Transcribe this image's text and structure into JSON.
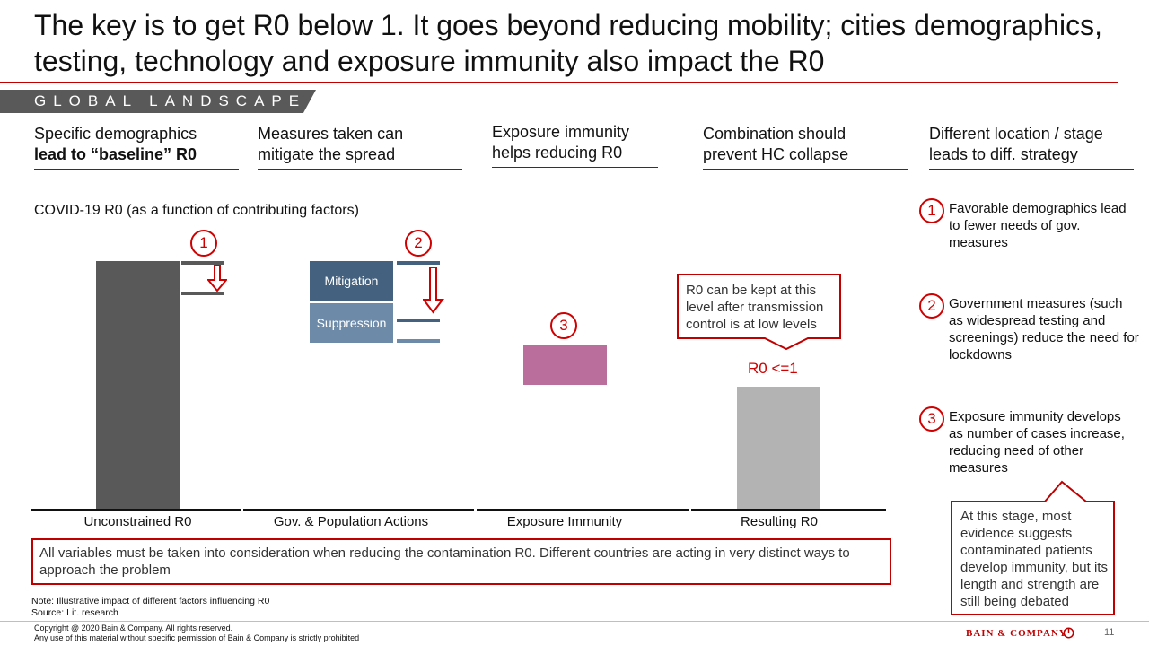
{
  "title": "The key is to get R0 below 1. It goes beyond reducing mobility; cities demographics, testing, technology and exposure immunity also impact the R0",
  "section_label": "GLOBAL LANDSCAPE",
  "columns": [
    {
      "line1": "Specific demographics",
      "line2": "lead to “baseline” R0"
    },
    {
      "line1": "Measures taken can",
      "line2": "mitigate the spread"
    },
    {
      "line1": "Exposure immunity",
      "line2": "helps reducing R0"
    },
    {
      "line1": "Combination should",
      "line2": "prevent HC collapse"
    },
    {
      "line1": "Different location / stage",
      "line2": "leads to  diff. strategy"
    }
  ],
  "chart_label": "COVID-19 R0 (as a function of contributing factors)",
  "markers": [
    "1",
    "2",
    "3"
  ],
  "chart_data": {
    "type": "bar",
    "categories": [
      "Unconstrained R0",
      "Gov. & Population Actions",
      "Exposure Immunity",
      "Resulting R0"
    ],
    "bar_labels": [
      "Mitigation",
      "Suppression"
    ],
    "colors": {
      "unconstrained": "#595959",
      "mitigation": "#44617f",
      "suppression": "#6d8aa8",
      "immunity": "#b96e9c",
      "resulting": "#b3b3b3",
      "accent": "#c00000"
    }
  },
  "callout": {
    "text": "R0 can be kept at this level after transmission control is at low levels",
    "r0_label": "R0 <=1"
  },
  "side_items": [
    {
      "num": "1",
      "text": "Favorable demographics lead to fewer needs of gov. measures"
    },
    {
      "num": "2",
      "text": "Government measures (such as widespread testing and screenings) reduce the need for lockdowns"
    },
    {
      "num": "3",
      "text": "Exposure immunity develops as number of cases increase, reducing need of other measures"
    }
  ],
  "side_callout": "At this stage, most evidence suggests contaminated patients develop immunity, but its length and strength are still being debated",
  "bottom_box": "All variables must be taken into consideration when reducing the contamination R0.  Different countries are acting in very distinct ways to approach the problem",
  "note": "Note: Illustrative impact of different factors influencing R0",
  "source": "Source: Lit. research",
  "copyright1": "Copyright  @ 2020 Bain & Company. All rights reserved.",
  "copyright2": "Any use of this material without specific permission of Bain & Company is strictly prohibited",
  "brand": "BAIN & COMPANY",
  "page_number": "11"
}
